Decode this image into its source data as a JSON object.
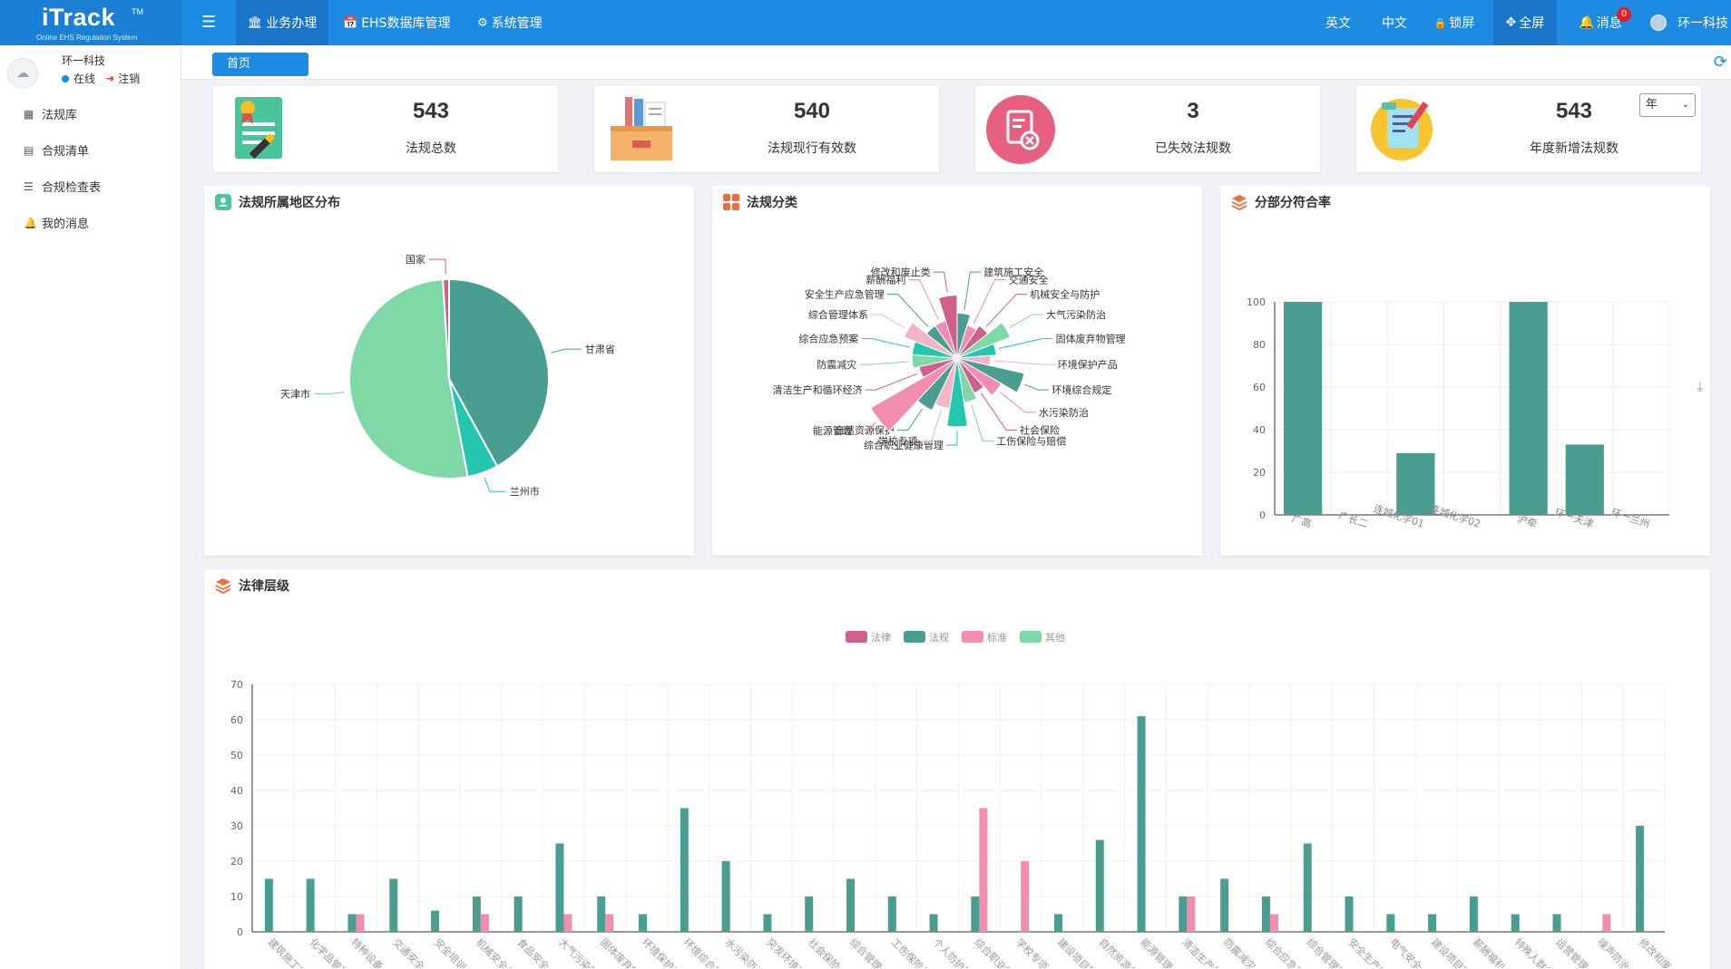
{
  "header": {
    "brand": "iTrack",
    "tm": "TM",
    "subtitle": "Online EHS Regulation System",
    "nav": [
      {
        "label": "业务办理",
        "icon": "bank-icon"
      },
      {
        "label": "EHS数据库管理",
        "icon": "calendar-icon"
      },
      {
        "label": "系统管理",
        "icon": "gear-icon"
      }
    ],
    "right": {
      "english": "英文",
      "chinese": "中文",
      "lock": "锁屏",
      "fullscreen": "全屏",
      "messages": "消息",
      "message_count": "0",
      "user": "环一科技"
    }
  },
  "sidebar": {
    "user_name": "环一科技",
    "status": "在线",
    "logout": "注销",
    "items": [
      {
        "label": "法规库",
        "icon": "grid-icon"
      },
      {
        "label": "合规清单",
        "icon": "monitor-icon"
      },
      {
        "label": "合规检查表",
        "icon": "list-icon"
      },
      {
        "label": "我的消息",
        "icon": "bell-icon"
      }
    ]
  },
  "tabs": {
    "home": "首页"
  },
  "stats": [
    {
      "value": "543",
      "label": "法规总数",
      "icon": "certificate-icon"
    },
    {
      "value": "540",
      "label": "法规现行有效数",
      "icon": "archive-box-icon"
    },
    {
      "value": "3",
      "label": "已失效法规数",
      "icon": "expired-document-icon"
    },
    {
      "value": "543",
      "label": "年度新增法规数",
      "icon": "new-document-icon"
    }
  ],
  "year_select": {
    "selected": "年"
  },
  "panels": {
    "region": "法规所属地区分布",
    "category": "法规分类",
    "compliance": "分部分符合率",
    "hierarchy": "法律层级"
  },
  "colors": {
    "header": "#1e8be3",
    "teal": "#4a9e8f",
    "pink": "#f28db2",
    "rose": "#cf6089",
    "mint": "#7fd8a5",
    "cyan": "#24c6b0"
  },
  "chart_data": [
    {
      "type": "pie",
      "title": "法规所属地区分布",
      "labels": [
        "甘肃省",
        "兰州市",
        "天津市",
        "国家"
      ],
      "values": [
        42,
        5,
        52,
        1
      ],
      "colors": [
        "#4a9e8f",
        "#24c6b0",
        "#7fd8a5",
        "#cf6089"
      ]
    },
    {
      "type": "pie",
      "title": "法规分类",
      "labels": [
        "建筑施工安全",
        "交通安全",
        "机械安全与防护",
        "大气污染防治",
        "固体废弃物管理",
        "环境保护产品",
        "环境综合规定",
        "水污染防治",
        "社会保险",
        "工伤保险与赔偿",
        "综合职业健康管理",
        "学校专项",
        "自然资源保护",
        "能源管理",
        "清洁生产和循环经济",
        "防震减灾",
        "综合应急预案",
        "综合管理体系",
        "安全生产应急管理",
        "薪酬福利",
        "修改和废止类"
      ],
      "values": [
        15,
        6,
        10,
        25,
        10,
        5,
        35,
        20,
        10,
        15,
        35,
        20,
        26,
        61,
        10,
        15,
        15,
        25,
        10,
        10,
        30
      ]
    },
    {
      "type": "bar",
      "title": "分部分符合率",
      "categories": [
        "广高",
        "广长二",
        "连城化学01",
        "连城化学02",
        "沪牵",
        "环一天津",
        "环一兰州"
      ],
      "values": [
        100,
        0,
        29,
        0,
        100,
        33,
        0
      ],
      "ylim": [
        0,
        100
      ],
      "yticks": [
        0,
        20,
        40,
        60,
        80,
        100
      ]
    },
    {
      "type": "bar",
      "title": "法律层级",
      "legend": [
        "法律",
        "法规",
        "标准",
        "其他"
      ],
      "categories": [
        "建筑施工安全",
        "化学品管理",
        "特种设备",
        "交通安全",
        "安全培训",
        "机械安全与防护",
        "食品安全",
        "大气污染防治",
        "固体废弃物管理",
        "环境保护产品",
        "环境综合规定",
        "水污染防治",
        "突发环境事件及应急",
        "社会保险",
        "综合管理",
        "工伤保险与赔偿",
        "个人防护用品",
        "综合职业健康管理",
        "学校专项",
        "建设项目职业卫生",
        "自然资源保护",
        "能源管理",
        "清洁生产和循环经济",
        "防震减灾",
        "综合应急预案",
        "综合管理体系",
        "安全生产应急管理",
        "电气安全",
        "建设项目环境影响",
        "薪酬福利",
        "特殊人群保护",
        "运营管理",
        "噪声防治",
        "修改和废止类"
      ],
      "series": [
        {
          "name": "法规",
          "values": [
            15,
            15,
            5,
            15,
            6,
            10,
            10,
            25,
            10,
            5,
            35,
            20,
            5,
            10,
            15,
            10,
            5,
            10,
            0,
            5,
            26,
            61,
            10,
            15,
            10,
            25,
            10,
            5,
            5,
            10,
            5,
            5,
            0,
            30
          ]
        },
        {
          "name": "标准",
          "values": [
            0,
            0,
            5,
            0,
            0,
            5,
            0,
            5,
            5,
            0,
            0,
            0,
            0,
            0,
            0,
            0,
            0,
            35,
            20,
            0,
            0,
            0,
            10,
            0,
            5,
            0,
            0,
            0,
            0,
            0,
            0,
            0,
            5,
            0
          ]
        }
      ],
      "ylim": [
        0,
        70
      ],
      "yticks": [
        0,
        10,
        20,
        30,
        40,
        50,
        60,
        70
      ]
    }
  ]
}
